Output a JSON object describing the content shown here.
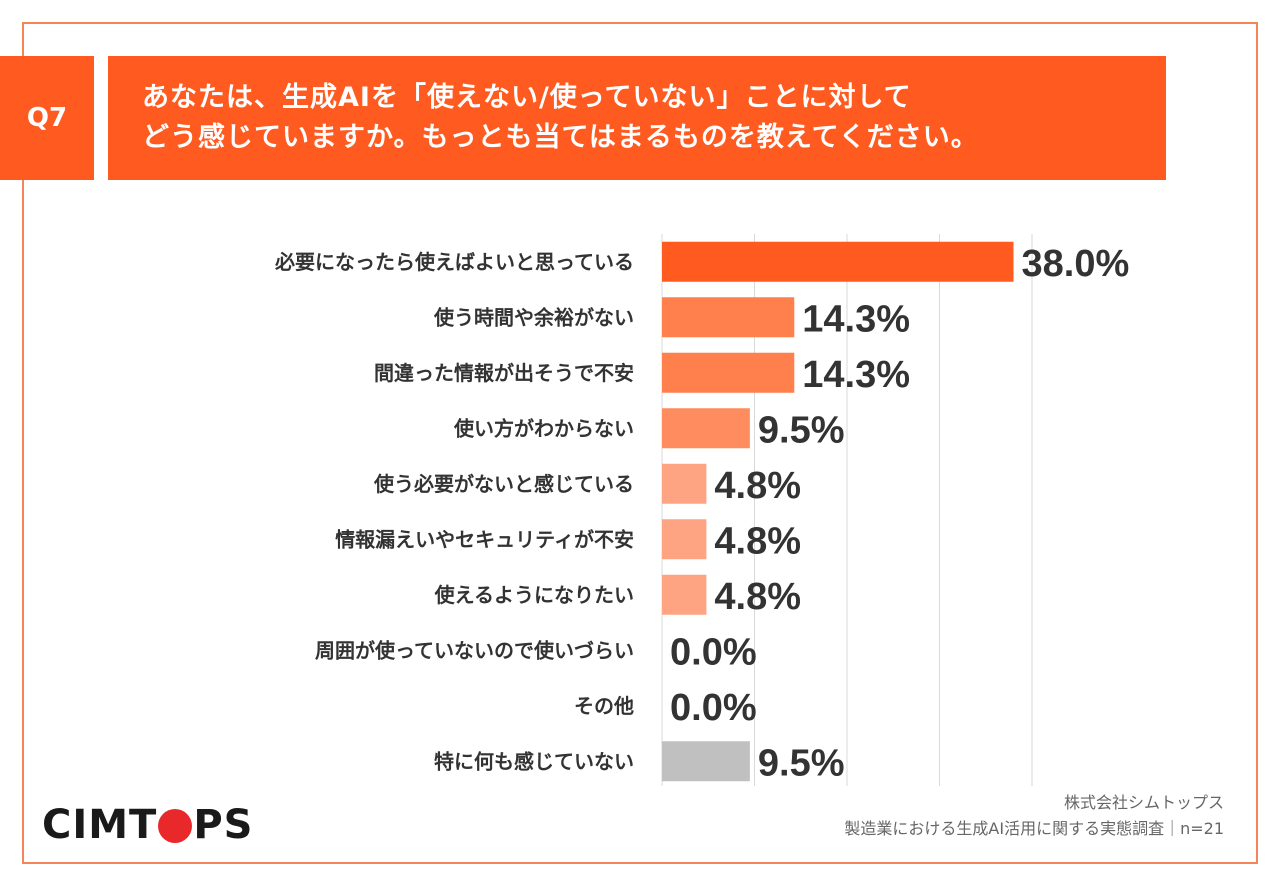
{
  "header": {
    "q_label": "Q7",
    "title_line1": "あなたは、生成AIを「使えない/使っていない」ことに対して",
    "title_line2": "どう感じていますか。もっとも当てはまるものを教えてください。"
  },
  "chart_data": {
    "type": "bar",
    "orientation": "horizontal",
    "categories": [
      "必要になったら使えばよいと思っている",
      "使う時間や余裕がない",
      "間違った情報が出そうで不安",
      "使い方がわからない",
      "使う必要がないと感じている",
      "情報漏えいやセキュリティが不安",
      "使えるようになりたい",
      "周囲が使っていないので使いづらい",
      "その他",
      "特に何も感じていない"
    ],
    "values": [
      38.0,
      14.3,
      14.3,
      9.5,
      4.8,
      4.8,
      4.8,
      0.0,
      0.0,
      9.5
    ],
    "value_labels": [
      "38.0%",
      "14.3%",
      "14.3%",
      "9.5%",
      "4.8%",
      "4.8%",
      "4.8%",
      "0.0%",
      "0.0%",
      "9.5%"
    ],
    "xlim": [
      0,
      40
    ],
    "grid": true,
    "bar_colors": [
      "#ff5a1f",
      "#ff7f4d",
      "#ff7f4d",
      "#ff8c5f",
      "#ffa482",
      "#ffa482",
      "#ffa482",
      "#ffa482",
      "#ffa482",
      "#c0c0c0"
    ]
  },
  "footer": {
    "logo_left": "CIMT",
    "logo_right": "PS",
    "source_line1": "株式会社シムトップス",
    "source_line2": "製造業における生成AI活用に関する実態調査｜n=21"
  }
}
